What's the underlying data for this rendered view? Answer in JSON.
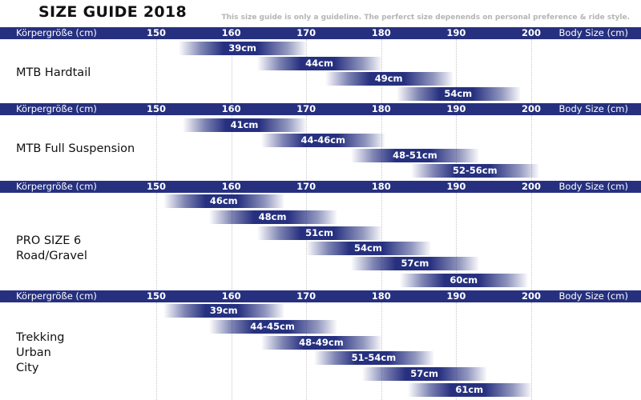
{
  "title": "SIZE GUIDE 2018",
  "note": "This size guide is only a guideline. The perferct size depenends on personal preference & ride style.",
  "colors": {
    "band": "#26307f",
    "bar": "#26307f",
    "grid": "#c8c8c8"
  },
  "chart_data": {
    "type": "bar",
    "orientation": "horizontal-range",
    "axis": {
      "left_label": "Körpergröße (cm)",
      "right_label": "Body Size (cm)",
      "ticks": [
        "150",
        "160",
        "170",
        "180",
        "190",
        "200"
      ],
      "range": [
        150,
        200
      ]
    },
    "grid": true,
    "sections": [
      {
        "name": "MTB Hardtail",
        "sizes": [
          {
            "label": "39cm",
            "from": 153,
            "to": 170
          },
          {
            "label": "44cm",
            "from": 163.5,
            "to": 180
          },
          {
            "label": "49cm",
            "from": 172.5,
            "to": 189.5
          },
          {
            "label": "54cm",
            "from": 182,
            "to": 198.5
          }
        ]
      },
      {
        "name": "MTB Full Suspension",
        "sizes": [
          {
            "label": "41cm",
            "from": 153.5,
            "to": 170
          },
          {
            "label": "44-46cm",
            "from": 164,
            "to": 180.5
          },
          {
            "label": "48-51cm",
            "from": 176,
            "to": 193
          },
          {
            "label": "52-56cm",
            "from": 184,
            "to": 201
          }
        ]
      },
      {
        "name": "PRO SIZE 6\nRoad/Gravel",
        "sizes": [
          {
            "label": "46cm",
            "from": 151,
            "to": 167
          },
          {
            "label": "48cm",
            "from": 157,
            "to": 174
          },
          {
            "label": "51cm",
            "from": 163.5,
            "to": 180
          },
          {
            "label": "54cm",
            "from": 170,
            "to": 186.5
          },
          {
            "label": "57cm",
            "from": 176,
            "to": 193
          },
          {
            "label": "60cm",
            "from": 182.5,
            "to": 199.5
          }
        ]
      },
      {
        "name": "Trekking\nUrban\nCity",
        "sizes": [
          {
            "label": "39cm",
            "from": 151,
            "to": 167
          },
          {
            "label": "44-45cm",
            "from": 157,
            "to": 174
          },
          {
            "label": "48-49cm",
            "from": 164,
            "to": 180
          },
          {
            "label": "51-54cm",
            "from": 171,
            "to": 187
          },
          {
            "label": "57cm",
            "from": 177.5,
            "to": 194
          },
          {
            "label": "61cm",
            "from": 183.5,
            "to": 200
          }
        ]
      }
    ]
  }
}
